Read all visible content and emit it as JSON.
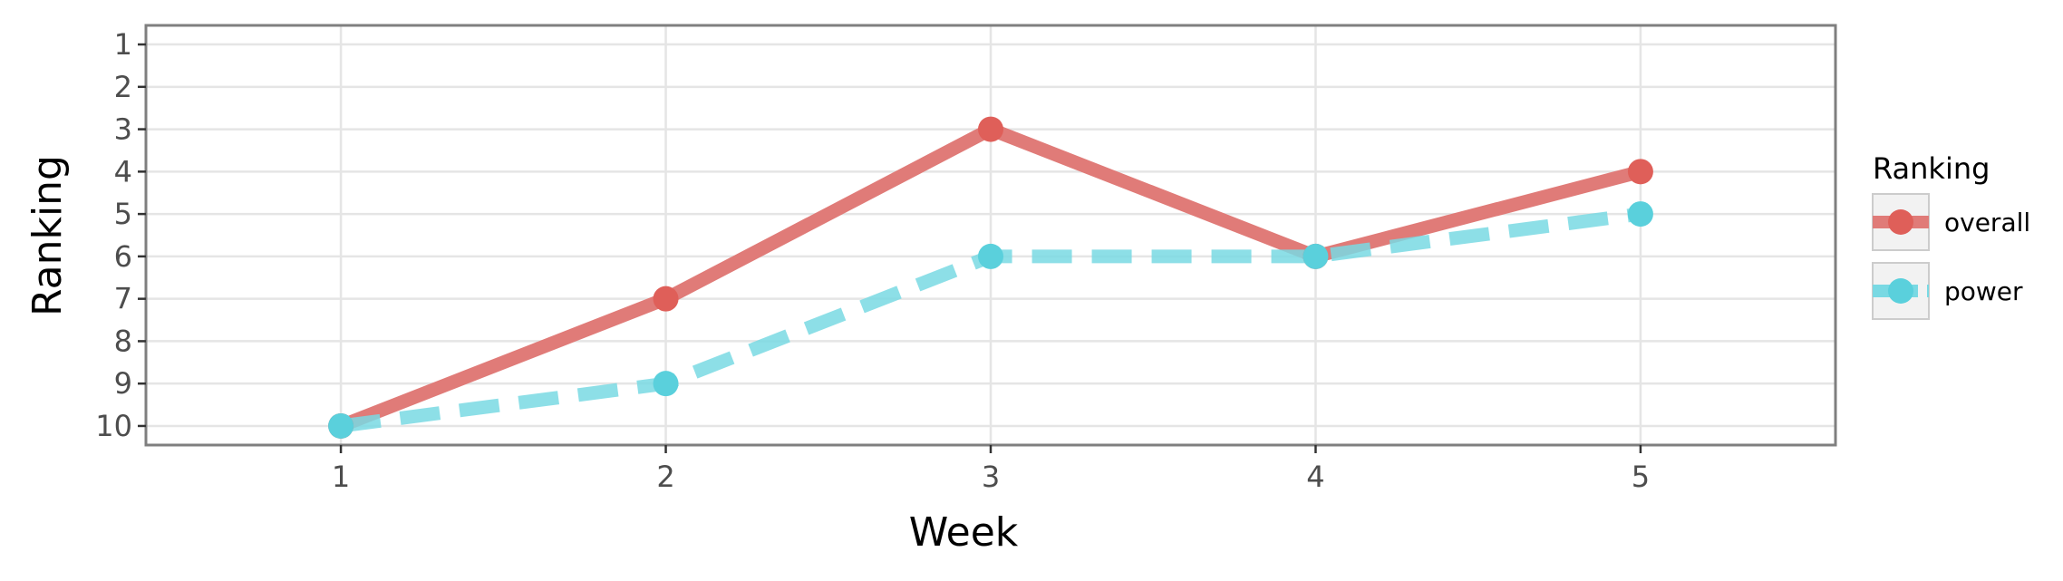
{
  "chart_data": {
    "type": "line",
    "xlabel": "Week",
    "ylabel": "Ranking",
    "x": [
      1,
      2,
      3,
      4,
      5
    ],
    "x_ticks": [
      "1",
      "2",
      "3",
      "4",
      "5"
    ],
    "y_ticks": [
      "1",
      "2",
      "3",
      "4",
      "5",
      "6",
      "7",
      "8",
      "9",
      "10"
    ],
    "xlim": [
      0.4,
      5.6
    ],
    "ylim": [
      10.45,
      0.55
    ],
    "y_reversed": true,
    "grid": true,
    "legend": {
      "title": "Ranking",
      "placement": "right",
      "entries": [
        "overall",
        "power"
      ]
    },
    "series": [
      {
        "name": "overall",
        "values": [
          10,
          7,
          3,
          6,
          4
        ],
        "color": "#E07B78",
        "marker_color": "#DF5F59",
        "dash": "solid"
      },
      {
        "name": "power",
        "values": [
          10,
          9,
          6,
          6,
          5
        ],
        "color": "#79D9E3",
        "marker_color": "#5AD0DC",
        "dash": "dashed"
      }
    ]
  }
}
